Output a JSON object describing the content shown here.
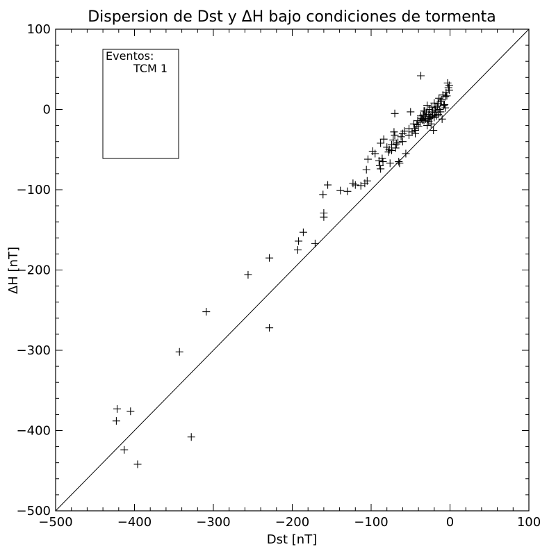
{
  "chart_data": {
    "type": "scatter",
    "title": "Dispersion de Dst y ΔH bajo condiciones de tormenta",
    "xlabel": "Dst [nT]",
    "ylabel": "ΔH [nT]",
    "xlim": [
      -500,
      100
    ],
    "ylim": [
      -500,
      100
    ],
    "xticks": [
      -500,
      -400,
      -300,
      -200,
      -100,
      0,
      100
    ],
    "yticks": [
      -500,
      -400,
      -300,
      -200,
      -100,
      0,
      100
    ],
    "xtick_labels": [
      "−500",
      "−400",
      "−300",
      "−200",
      "−100",
      "0",
      "100"
    ],
    "ytick_labels": [
      "−500",
      "−400",
      "−300",
      "−200",
      "−100",
      "0",
      "100"
    ],
    "reference_line": {
      "label": "",
      "from": [
        -500,
        -500
      ],
      "to": [
        100,
        100
      ]
    },
    "marker": "+",
    "legend": {
      "title": "Eventos:",
      "entries": [
        "TCM 1"
      ],
      "position": "top-left"
    },
    "series": [
      {
        "name": "TCM 1",
        "points": [
          [
            -422,
            -373
          ],
          [
            -423,
            -388
          ],
          [
            -405,
            -376
          ],
          [
            -413,
            -424
          ],
          [
            -396,
            -442
          ],
          [
            -343,
            -302
          ],
          [
            -328,
            -408
          ],
          [
            -309,
            -252
          ],
          [
            -256,
            -206
          ],
          [
            -229,
            -185
          ],
          [
            -229,
            -272
          ],
          [
            -193,
            -175
          ],
          [
            -192,
            -164
          ],
          [
            -186,
            -153
          ],
          [
            -171,
            -167
          ],
          [
            -161,
            -106
          ],
          [
            -160,
            -129
          ],
          [
            -160,
            -134
          ],
          [
            -155,
            -94
          ],
          [
            -139,
            -101
          ],
          [
            -130,
            -102
          ],
          [
            -123,
            -92
          ],
          [
            -120,
            -94
          ],
          [
            -113,
            -95
          ],
          [
            -108,
            -92
          ],
          [
            -106,
            -75
          ],
          [
            -105,
            -89
          ],
          [
            -104,
            -62
          ],
          [
            -95,
            -55
          ],
          [
            -90,
            -64
          ],
          [
            -89,
            -70
          ],
          [
            -88,
            -42
          ],
          [
            -88,
            -74
          ],
          [
            -85,
            -65
          ],
          [
            -84,
            -37
          ],
          [
            -80,
            -47
          ],
          [
            -78,
            -53
          ],
          [
            -77,
            -50
          ],
          [
            -76,
            -67
          ],
          [
            -74,
            -44
          ],
          [
            -72,
            -38
          ],
          [
            -71,
            -28
          ],
          [
            -70,
            -32
          ],
          [
            -70,
            -5
          ],
          [
            -69,
            -48
          ],
          [
            -68,
            -43
          ],
          [
            -66,
            -41
          ],
          [
            -65,
            -65
          ],
          [
            -64,
            -67
          ],
          [
            -62,
            -34
          ],
          [
            -60,
            -30
          ],
          [
            -58,
            -27
          ],
          [
            -56,
            -55
          ],
          [
            -52,
            -32
          ],
          [
            -50,
            -3
          ],
          [
            -48,
            -28
          ],
          [
            -45,
            -24
          ],
          [
            -44,
            -30
          ],
          [
            -42,
            -19
          ],
          [
            -40,
            -21
          ],
          [
            -38,
            -16
          ],
          [
            -37,
            42
          ],
          [
            -36,
            -11
          ],
          [
            -35,
            -13
          ],
          [
            -34,
            -7
          ],
          [
            -33,
            -14
          ],
          [
            -32,
            -2
          ],
          [
            -31,
            -9
          ],
          [
            -30,
            -4
          ],
          [
            -29,
            5
          ],
          [
            -28,
            -12
          ],
          [
            -27,
            -6
          ],
          [
            -26,
            0
          ],
          [
            -25,
            -9
          ],
          [
            -24,
            -18
          ],
          [
            -23,
            3
          ],
          [
            -22,
            -3
          ],
          [
            -21,
            -26
          ],
          [
            -20,
            -10
          ],
          [
            -20,
            8
          ],
          [
            -19,
            -1
          ],
          [
            -18,
            2
          ],
          [
            -17,
            -8
          ],
          [
            -16,
            4
          ],
          [
            -15,
            -6
          ],
          [
            -14,
            14
          ],
          [
            -13,
            0
          ],
          [
            -12,
            -3
          ],
          [
            -11,
            12
          ],
          [
            -10,
            -12
          ],
          [
            -9,
            18
          ],
          [
            -8,
            5
          ],
          [
            -7,
            6
          ],
          [
            -6,
            2
          ],
          [
            -5,
            21
          ],
          [
            -4,
            17
          ],
          [
            -3,
            33
          ],
          [
            -2,
            27
          ],
          [
            -1,
            30
          ],
          [
            -1,
            24
          ],
          [
            -31,
            -12
          ],
          [
            -27,
            -15
          ],
          [
            -23,
            -9
          ],
          [
            -19,
            -4
          ],
          [
            -15,
            7
          ],
          [
            -41,
            -14
          ],
          [
            -37,
            -8
          ],
          [
            -33,
            -2
          ],
          [
            -26,
            -11
          ],
          [
            -22,
            -7
          ],
          [
            -52,
            -24
          ],
          [
            -46,
            -18
          ],
          [
            -60,
            -40
          ],
          [
            -74,
            -51
          ],
          [
            -86,
            -61
          ],
          [
            -98,
            -52
          ],
          [
            -12,
            10
          ],
          [
            -6,
            16
          ],
          [
            -44,
            -26
          ],
          [
            -29,
            -20
          ]
        ]
      }
    ]
  }
}
